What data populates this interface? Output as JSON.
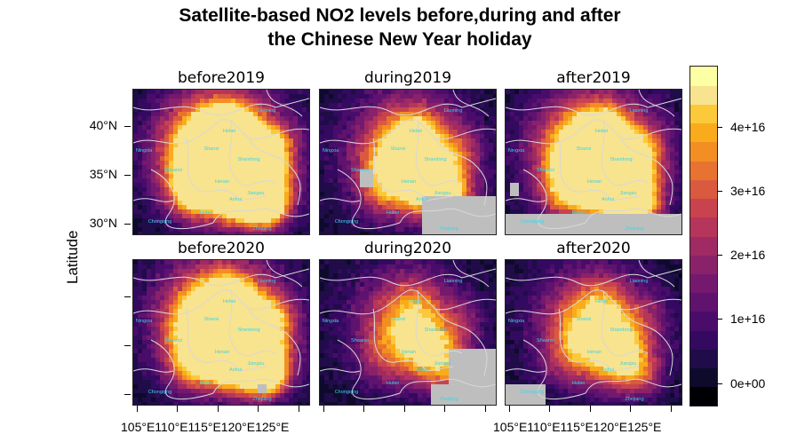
{
  "chart_data": {
    "type": "heatmap",
    "title_lines": [
      "Satellite-based NO2 levels before,during and after",
      "the Chinese New Year holiday"
    ],
    "ylabel": "Latitude",
    "panels": [
      {
        "label": "before2019",
        "intensity": 0.85,
        "nodata": "none"
      },
      {
        "label": "during2019",
        "intensity": 0.45,
        "nodata": "southeast"
      },
      {
        "label": "after2019",
        "intensity": 0.65,
        "nodata": "south"
      },
      {
        "label": "before2020",
        "intensity": 0.75,
        "nodata": "small"
      },
      {
        "label": "during2020",
        "intensity": 0.3,
        "nodata": "east"
      },
      {
        "label": "after2020",
        "intensity": 0.35,
        "nodata": "southwest"
      }
    ],
    "lat_ticks": [
      "40°N",
      "35°N",
      "30°N"
    ],
    "lon_ticks": [
      "105°E",
      "110°E",
      "115°E",
      "120°E",
      "125°E"
    ],
    "lon_tick_text_left": "105°E110°E115°E120°E125°E",
    "lon_tick_text_right": "105°E110°E115°E120°E125°E",
    "colorbar": {
      "ticks": [
        "4e+16",
        "3e+16",
        "2e+16",
        "1e+16",
        "0e+00"
      ],
      "colors": [
        "#000004",
        "#0e0a2c",
        "#1f0c48",
        "#330a5f",
        "#4a0c6b",
        "#5f136e",
        "#75196e",
        "#8a226a",
        "#a02a63",
        "#b5365a",
        "#c8434e",
        "#da5a40",
        "#e87330",
        "#f38e22",
        "#f9ab1b",
        "#fcc93a",
        "#f8e38e",
        "#fcffa4"
      ]
    },
    "provinces": [
      "Liaoning",
      "Shanxi",
      "Shandong",
      "Henan",
      "Jiangsu",
      "Anhui",
      "Hubei",
      "Zhejiang",
      "Ningxia",
      "Shaanxi",
      "Chongqing",
      "Hebei"
    ]
  }
}
